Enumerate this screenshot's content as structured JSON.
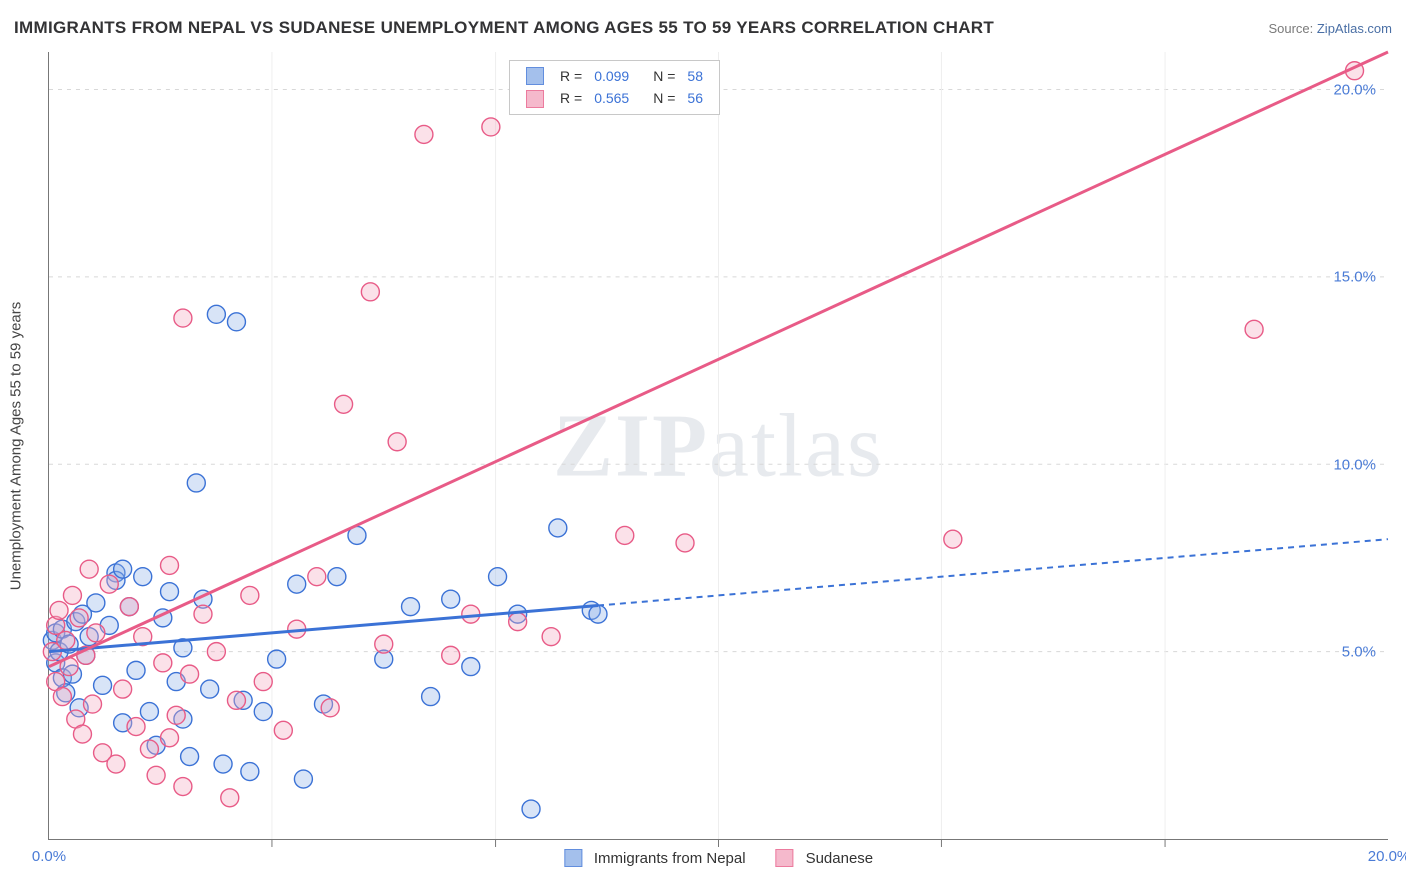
{
  "title": "IMMIGRANTS FROM NEPAL VS SUDANESE UNEMPLOYMENT AMONG AGES 55 TO 59 YEARS CORRELATION CHART",
  "source_prefix": "Source: ",
  "source_link": "ZipAtlas.com",
  "ylabel": "Unemployment Among Ages 55 to 59 years",
  "watermark_bold": "ZIP",
  "watermark_rest": "atlas",
  "chart": {
    "type": "scatter",
    "xlim": [
      0,
      20
    ],
    "ylim": [
      0,
      21
    ],
    "xticks": [
      0,
      20
    ],
    "yticks": [
      5,
      10,
      15,
      20
    ],
    "xtick_labels": [
      "0.0%",
      "20.0%"
    ],
    "ytick_labels": [
      "5.0%",
      "10.0%",
      "15.0%",
      "20.0%"
    ],
    "gridlines_v_minor": [
      3.33,
      6.67,
      10,
      13.33,
      16.67
    ],
    "background_color": "#ffffff",
    "grid_color": "#d8d8d8",
    "axis_color": "#777777",
    "tick_label_color": "#4a7bd6",
    "marker_radius": 9,
    "marker_fill_opacity": 0.35,
    "marker_stroke_width": 1.4,
    "line_width": 3,
    "dash_pattern": "6,5"
  },
  "series": [
    {
      "key": "nepal",
      "label": "Immigrants from Nepal",
      "color_stroke": "#3b72d6",
      "color_fill": "#8eb1e8",
      "R": "0.099",
      "N": "58",
      "trend": {
        "x1": 0,
        "y1": 5.0,
        "x2": 20,
        "y2": 8.0,
        "solid_until_x": 8.2
      },
      "points": [
        [
          0.05,
          5.3
        ],
        [
          0.1,
          4.7
        ],
        [
          0.1,
          5.5
        ],
        [
          0.15,
          5.0
        ],
        [
          0.2,
          4.3
        ],
        [
          0.2,
          5.6
        ],
        [
          0.25,
          3.9
        ],
        [
          0.3,
          5.2
        ],
        [
          0.35,
          4.4
        ],
        [
          0.4,
          5.8
        ],
        [
          0.45,
          3.5
        ],
        [
          0.5,
          6.0
        ],
        [
          0.55,
          4.9
        ],
        [
          0.6,
          5.4
        ],
        [
          0.7,
          6.3
        ],
        [
          0.8,
          4.1
        ],
        [
          0.9,
          5.7
        ],
        [
          1.0,
          7.1
        ],
        [
          1.0,
          6.9
        ],
        [
          1.1,
          3.1
        ],
        [
          1.1,
          7.2
        ],
        [
          1.2,
          6.2
        ],
        [
          1.3,
          4.5
        ],
        [
          1.4,
          7.0
        ],
        [
          1.5,
          3.4
        ],
        [
          1.6,
          2.5
        ],
        [
          1.7,
          5.9
        ],
        [
          1.8,
          6.6
        ],
        [
          1.9,
          4.2
        ],
        [
          2.0,
          5.1
        ],
        [
          2.0,
          3.2
        ],
        [
          2.1,
          2.2
        ],
        [
          2.2,
          9.5
        ],
        [
          2.3,
          6.4
        ],
        [
          2.4,
          4.0
        ],
        [
          2.5,
          14.0
        ],
        [
          2.6,
          2.0
        ],
        [
          2.8,
          13.8
        ],
        [
          2.9,
          3.7
        ],
        [
          3.0,
          1.8
        ],
        [
          3.2,
          3.4
        ],
        [
          3.4,
          4.8
        ],
        [
          3.7,
          6.8
        ],
        [
          3.8,
          1.6
        ],
        [
          4.1,
          3.6
        ],
        [
          4.3,
          7.0
        ],
        [
          4.6,
          8.1
        ],
        [
          5.0,
          4.8
        ],
        [
          5.4,
          6.2
        ],
        [
          5.7,
          3.8
        ],
        [
          6.0,
          6.4
        ],
        [
          6.3,
          4.6
        ],
        [
          6.7,
          7.0
        ],
        [
          7.0,
          6.0
        ],
        [
          7.2,
          0.8
        ],
        [
          7.6,
          8.3
        ],
        [
          8.1,
          6.1
        ],
        [
          8.2,
          6.0
        ]
      ]
    },
    {
      "key": "sudanese",
      "label": "Sudanese",
      "color_stroke": "#e85b87",
      "color_fill": "#f3a8c0",
      "R": "0.565",
      "N": "56",
      "trend": {
        "x1": 0,
        "y1": 4.6,
        "x2": 20,
        "y2": 21.0,
        "solid_until_x": 20
      },
      "points": [
        [
          0.05,
          5.0
        ],
        [
          0.1,
          4.2
        ],
        [
          0.1,
          5.7
        ],
        [
          0.15,
          6.1
        ],
        [
          0.2,
          3.8
        ],
        [
          0.25,
          5.3
        ],
        [
          0.3,
          4.6
        ],
        [
          0.35,
          6.5
        ],
        [
          0.4,
          3.2
        ],
        [
          0.45,
          5.9
        ],
        [
          0.5,
          2.8
        ],
        [
          0.55,
          4.9
        ],
        [
          0.6,
          7.2
        ],
        [
          0.65,
          3.6
        ],
        [
          0.7,
          5.5
        ],
        [
          0.8,
          2.3
        ],
        [
          0.9,
          6.8
        ],
        [
          1.0,
          2.0
        ],
        [
          1.1,
          4.0
        ],
        [
          1.2,
          6.2
        ],
        [
          1.3,
          3.0
        ],
        [
          1.4,
          5.4
        ],
        [
          1.5,
          2.4
        ],
        [
          1.6,
          1.7
        ],
        [
          1.7,
          4.7
        ],
        [
          1.8,
          2.7
        ],
        [
          1.8,
          7.3
        ],
        [
          1.9,
          3.3
        ],
        [
          2.0,
          1.4
        ],
        [
          2.0,
          13.9
        ],
        [
          2.1,
          4.4
        ],
        [
          2.3,
          6.0
        ],
        [
          2.5,
          5.0
        ],
        [
          2.7,
          1.1
        ],
        [
          2.8,
          3.7
        ],
        [
          3.0,
          6.5
        ],
        [
          3.2,
          4.2
        ],
        [
          3.5,
          2.9
        ],
        [
          3.7,
          5.6
        ],
        [
          4.0,
          7.0
        ],
        [
          4.2,
          3.5
        ],
        [
          4.4,
          11.6
        ],
        [
          4.8,
          14.6
        ],
        [
          5.0,
          5.2
        ],
        [
          5.2,
          10.6
        ],
        [
          5.6,
          18.8
        ],
        [
          6.0,
          4.9
        ],
        [
          6.3,
          6.0
        ],
        [
          6.6,
          19.0
        ],
        [
          7.0,
          5.8
        ],
        [
          7.5,
          5.4
        ],
        [
          8.6,
          8.1
        ],
        [
          9.5,
          7.9
        ],
        [
          13.5,
          8.0
        ],
        [
          18.0,
          13.6
        ],
        [
          19.5,
          20.5
        ]
      ]
    }
  ],
  "legend_box": {
    "R_label": "R =",
    "N_label": "N ="
  }
}
